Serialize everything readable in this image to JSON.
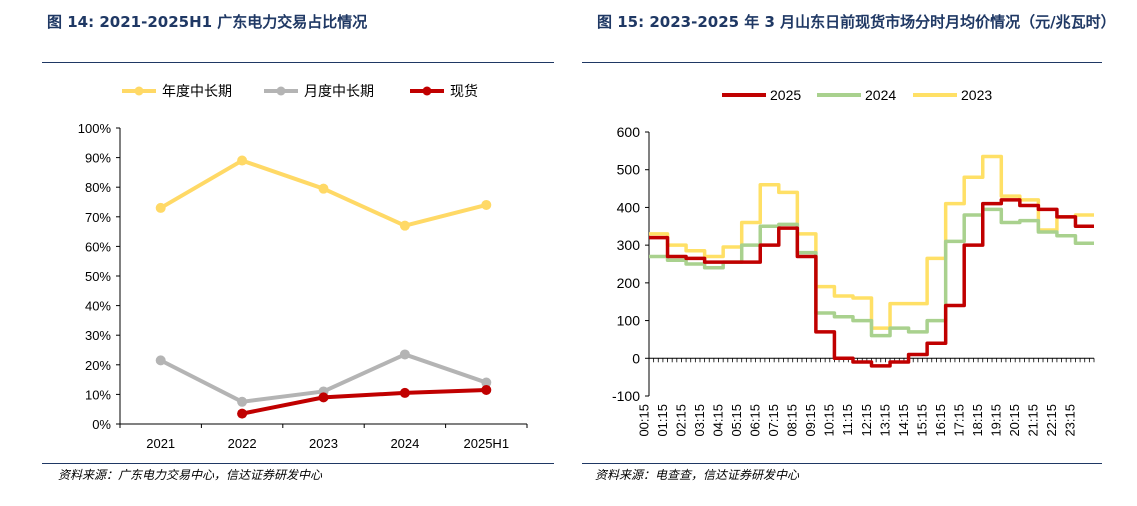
{
  "charts": [
    {
      "figure_label": "图 14:",
      "title": "2021-2025H1 广东电力交易占比情况",
      "source": "资料来源：广东电力交易中心，信达证券研发中心"
    },
    {
      "figure_label": "图 15:",
      "title": "2023-2025 年 3 月山东日前现货市场分时月均价情况（元/兆瓦时）",
      "source": "资料来源：电查查，信达证券研发中心"
    }
  ],
  "colors": {
    "title": "#1f3864",
    "yellow": "#ffd966",
    "gray": "#b4b4b4",
    "red": "#c00000",
    "green": "#a9d18e",
    "yellow2": "#ffe066"
  },
  "chart_data": [
    {
      "type": "line",
      "categories": [
        "2021",
        "2022",
        "2023",
        "2024",
        "2025H1"
      ],
      "series": [
        {
          "name": "年度中长期",
          "color": "#ffd966",
          "values": [
            0.73,
            0.89,
            0.795,
            0.67,
            0.74
          ]
        },
        {
          "name": "月度中长期",
          "color": "#b4b4b4",
          "values": [
            0.215,
            0.075,
            0.11,
            0.235,
            0.14
          ]
        },
        {
          "name": "现货",
          "color": "#c00000",
          "values": [
            null,
            0.035,
            0.09,
            0.105,
            0.115
          ]
        }
      ],
      "ylim": [
        0,
        1
      ],
      "yticks": [
        "0%",
        "10%",
        "20%",
        "30%",
        "40%",
        "50%",
        "60%",
        "70%",
        "80%",
        "90%",
        "100%"
      ],
      "legend": "top",
      "grid": false
    },
    {
      "type": "line",
      "x": [
        "00:15",
        "01:15",
        "02:15",
        "03:15",
        "04:15",
        "05:15",
        "06:15",
        "07:15",
        "08:15",
        "09:15",
        "10:15",
        "11:15",
        "12:15",
        "13:15",
        "14:15",
        "15:15",
        "16:15",
        "17:15",
        "18:15",
        "19:15",
        "20:15",
        "21:15",
        "22:15",
        "23:15"
      ],
      "series": [
        {
          "name": "2025",
          "color": "#c00000",
          "values": [
            320,
            270,
            265,
            255,
            255,
            255,
            300,
            345,
            270,
            70,
            0,
            -10,
            -20,
            -10,
            10,
            40,
            140,
            300,
            410,
            420,
            405,
            395,
            375,
            350
          ]
        },
        {
          "name": "2024",
          "color": "#a9d18e",
          "values": [
            270,
            260,
            250,
            240,
            255,
            300,
            350,
            355,
            280,
            120,
            110,
            100,
            60,
            80,
            70,
            100,
            310,
            380,
            395,
            360,
            365,
            335,
            325,
            305
          ]
        },
        {
          "name": "2023",
          "color": "#ffe066",
          "values": [
            330,
            300,
            285,
            270,
            295,
            360,
            460,
            440,
            330,
            190,
            165,
            160,
            80,
            145,
            145,
            265,
            410,
            480,
            535,
            430,
            420,
            340,
            375,
            380
          ]
        }
      ],
      "ylim": [
        -100,
        600
      ],
      "yticks": [
        "-100",
        "0",
        "100",
        "200",
        "300",
        "400",
        "500",
        "600"
      ],
      "legend": "top",
      "grid": false
    }
  ]
}
